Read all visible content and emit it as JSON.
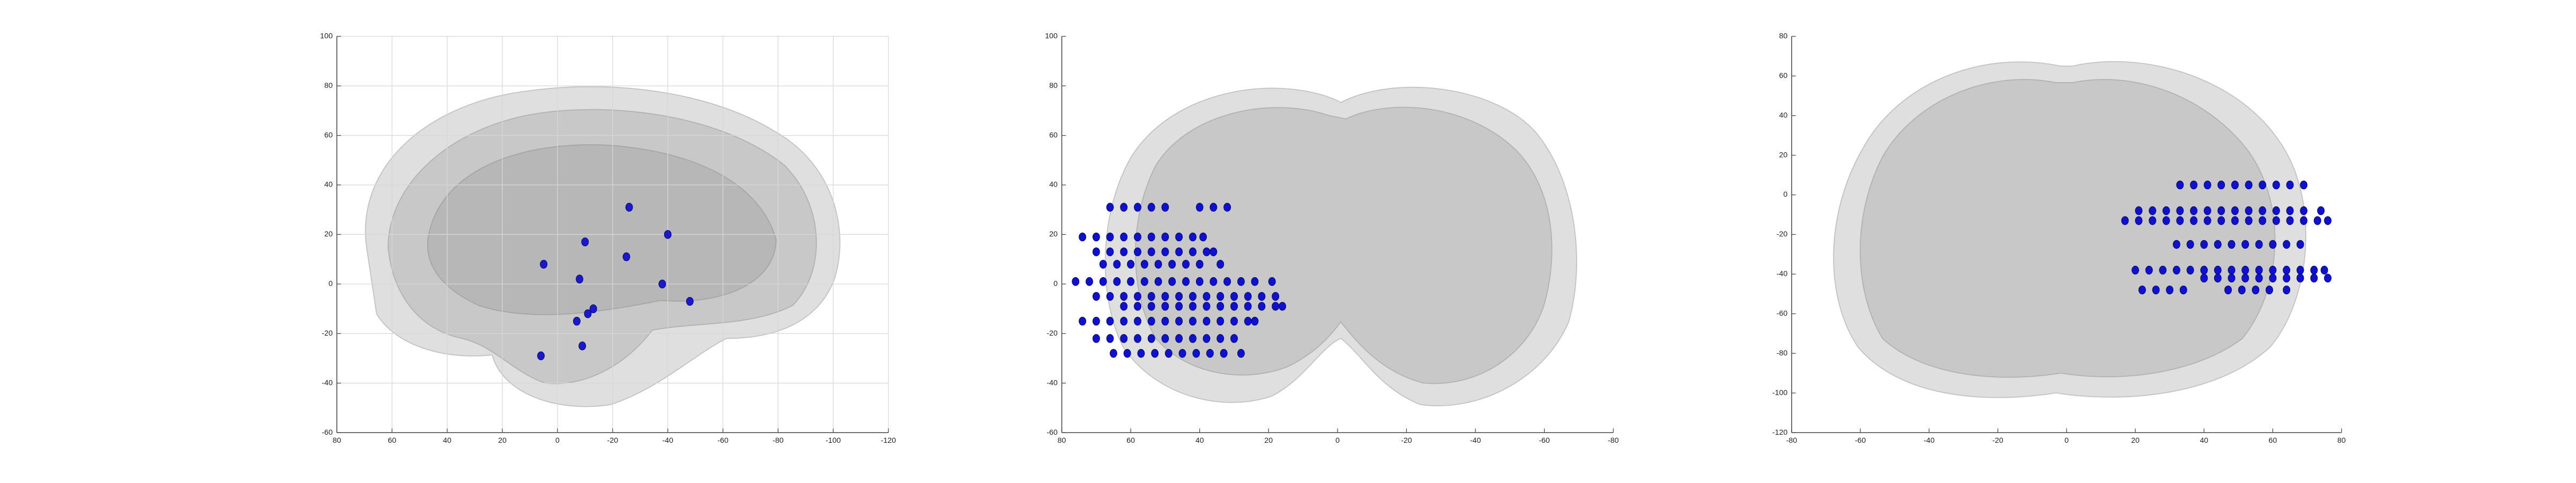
{
  "chart_data": [
    {
      "type": "scatter",
      "xlim": [
        80,
        -120
      ],
      "ylim": [
        -60,
        100
      ],
      "xticks": [
        80,
        60,
        40,
        20,
        0,
        -20,
        -40,
        -60,
        -80,
        -100,
        -120
      ],
      "yticks": [
        -60,
        -40,
        -20,
        0,
        20,
        40,
        60,
        80,
        100
      ],
      "grid": true,
      "series": [
        {
          "color": "#1a1acc",
          "x": [
            -26,
            -10,
            5,
            -25,
            -40,
            -8,
            -38,
            -48,
            -13,
            -7,
            -9,
            6,
            -11
          ],
          "y": [
            31,
            17,
            8,
            11,
            20,
            2,
            0,
            -7,
            -10,
            -15,
            -25,
            -29,
            -12
          ]
        }
      ]
    },
    {
      "type": "scatter",
      "xlim": [
        80,
        -80
      ],
      "ylim": [
        -60,
        100
      ],
      "xticks": [
        80,
        60,
        40,
        20,
        0,
        -20,
        -40,
        -60,
        -80
      ],
      "yticks": [
        -60,
        -40,
        -20,
        0,
        20,
        40,
        60,
        80,
        100
      ],
      "grid": false,
      "series": [
        {
          "color": "#1010d0",
          "x": [
            66,
            62,
            58,
            54,
            50,
            40,
            36,
            32,
            74,
            70,
            66,
            62,
            58,
            54,
            50,
            46,
            42,
            39,
            70,
            66,
            62,
            58,
            54,
            50,
            46,
            42,
            38,
            36,
            68,
            64,
            60,
            56,
            52,
            48,
            44,
            40,
            34,
            76,
            72,
            68,
            64,
            60,
            56,
            52,
            48,
            44,
            40,
            36,
            32,
            28,
            24,
            19,
            70,
            66,
            62,
            58,
            54,
            50,
            46,
            42,
            38,
            34,
            30,
            26,
            22,
            18,
            62,
            58,
            54,
            50,
            46,
            42,
            38,
            34,
            30,
            26,
            22,
            18,
            16,
            74,
            70,
            66,
            62,
            58,
            54,
            50,
            46,
            42,
            38,
            34,
            30,
            26,
            24,
            70,
            66,
            62,
            58,
            54,
            50,
            46,
            42,
            38,
            34,
            30,
            65,
            61,
            57,
            53,
            49,
            45,
            41,
            37,
            33,
            28
          ],
          "y": [
            31,
            31,
            31,
            31,
            31,
            31,
            31,
            31,
            19,
            19,
            19,
            19,
            19,
            19,
            19,
            19,
            19,
            19,
            13,
            13,
            13,
            13,
            13,
            13,
            13,
            13,
            13,
            13,
            8,
            8,
            8,
            8,
            8,
            8,
            8,
            8,
            8,
            1,
            1,
            1,
            1,
            1,
            1,
            1,
            1,
            1,
            1,
            1,
            1,
            1,
            1,
            1,
            -5,
            -5,
            -5,
            -5,
            -5,
            -5,
            -5,
            -5,
            -5,
            -5,
            -5,
            -5,
            -5,
            -5,
            -9,
            -9,
            -9,
            -9,
            -9,
            -9,
            -9,
            -9,
            -9,
            -9,
            -9,
            -9,
            -9,
            -15,
            -15,
            -15,
            -15,
            -15,
            -15,
            -15,
            -15,
            -15,
            -15,
            -15,
            -15,
            -15,
            -15,
            -22,
            -22,
            -22,
            -22,
            -22,
            -22,
            -22,
            -22,
            -22,
            -22,
            -22,
            -28,
            -28,
            -28,
            -28,
            -28,
            -28,
            -28,
            -28,
            -28,
            -28
          ]
        }
      ]
    },
    {
      "type": "scatter",
      "xlim": [
        -80,
        80
      ],
      "ylim": [
        -120,
        80
      ],
      "xticks": [
        -80,
        -60,
        -40,
        -20,
        0,
        20,
        40,
        60,
        80
      ],
      "yticks": [
        -120,
        -100,
        -80,
        -60,
        -40,
        -20,
        0,
        20,
        40,
        60,
        80
      ],
      "grid": false,
      "series": [
        {
          "color": "#1010d0",
          "x": [
            33,
            37,
            41,
            45,
            49,
            53,
            57,
            61,
            65,
            69,
            21,
            25,
            29,
            33,
            37,
            41,
            45,
            49,
            53,
            57,
            61,
            65,
            69,
            74,
            17,
            21,
            25,
            29,
            33,
            37,
            41,
            45,
            49,
            53,
            57,
            61,
            65,
            69,
            73,
            76,
            32,
            36,
            40,
            44,
            48,
            52,
            56,
            60,
            64,
            68,
            20,
            24,
            28,
            32,
            36,
            40,
            44,
            48,
            52,
            56,
            60,
            64,
            68,
            72,
            75,
            40,
            44,
            48,
            52,
            56,
            60,
            64,
            68,
            72,
            76,
            22,
            26,
            30,
            34,
            47,
            51,
            55,
            59,
            64
          ],
          "y": [
            5,
            5,
            5,
            5,
            5,
            5,
            5,
            5,
            5,
            5,
            -8,
            -8,
            -8,
            -8,
            -8,
            -8,
            -8,
            -8,
            -8,
            -8,
            -8,
            -8,
            -8,
            -8,
            -13,
            -13,
            -13,
            -13,
            -13,
            -13,
            -13,
            -13,
            -13,
            -13,
            -13,
            -13,
            -13,
            -13,
            -13,
            -13,
            -25,
            -25,
            -25,
            -25,
            -25,
            -25,
            -25,
            -25,
            -25,
            -25,
            -38,
            -38,
            -38,
            -38,
            -38,
            -38,
            -38,
            -38,
            -38,
            -38,
            -38,
            -38,
            -38,
            -38,
            -38,
            -42,
            -42,
            -42,
            -42,
            -42,
            -42,
            -42,
            -42,
            -42,
            -42,
            -48,
            -48,
            -48,
            -48,
            -48,
            -48,
            -48,
            -48,
            -48
          ]
        }
      ]
    }
  ]
}
